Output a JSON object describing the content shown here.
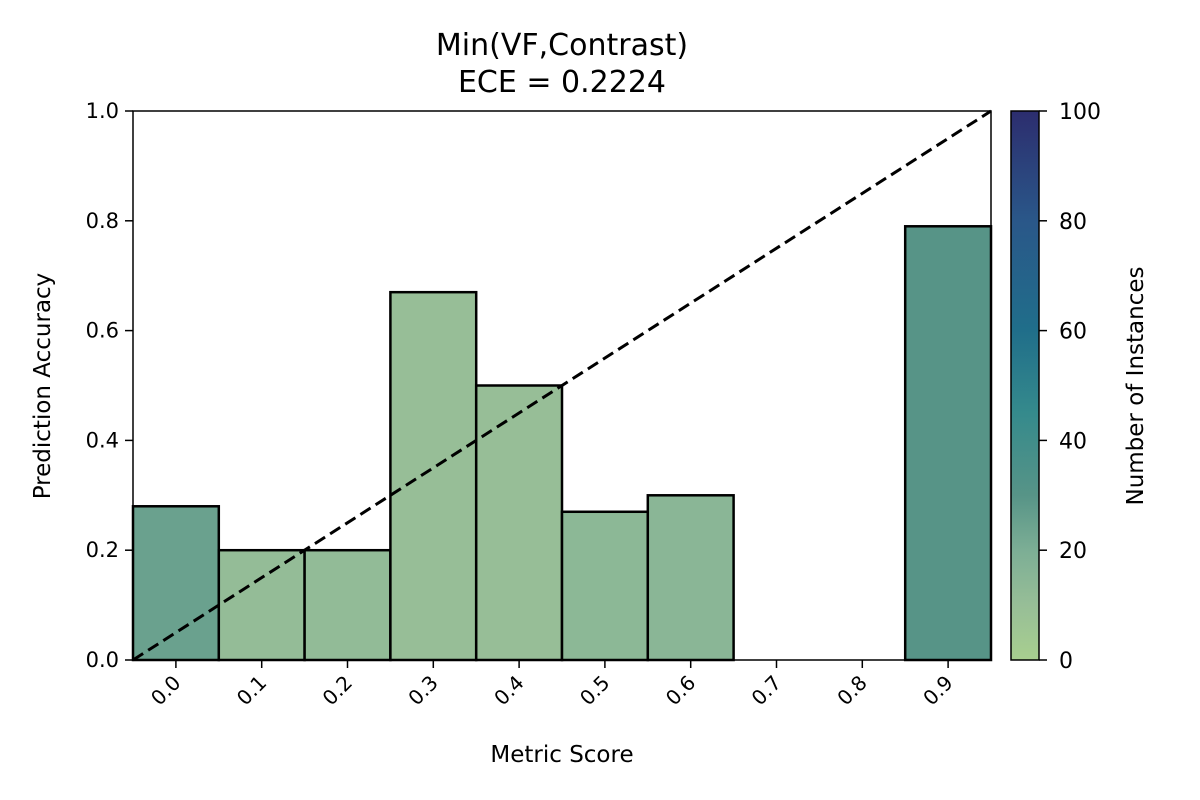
{
  "chart_data": {
    "type": "bar",
    "title": "Min(VF,Contrast)",
    "subtitle": "ECE = 0.2224",
    "xlabel": "Metric Score",
    "ylabel": "Prediction Accuracy",
    "categories": [
      "0.0",
      "0.1",
      "0.2",
      "0.3",
      "0.4",
      "0.5",
      "0.6",
      "0.7",
      "0.8",
      "0.9"
    ],
    "x_centers": [
      0.0,
      0.1,
      0.2,
      0.3,
      0.4,
      0.5,
      0.6,
      0.7,
      0.8,
      0.9
    ],
    "bin_width": 0.1,
    "values": [
      0.28,
      0.2,
      0.2,
      0.67,
      0.5,
      0.27,
      0.3,
      0,
      0,
      0.79
    ],
    "counts": [
      25,
      11,
      12,
      10,
      10,
      14,
      15,
      0,
      0,
      30
    ],
    "xlim": [
      -0.05,
      0.95
    ],
    "ylim": [
      0,
      1.0
    ],
    "yticks": [
      "0.0",
      "0.2",
      "0.4",
      "0.6",
      "0.8",
      "1.0"
    ],
    "ytick_values": [
      0,
      0.2,
      0.4,
      0.6,
      0.8,
      1.0
    ],
    "reference_line": "y = x (dashed)",
    "grid": false,
    "colorbar": {
      "label": "Number of Instances",
      "range": [
        0,
        100
      ],
      "ticks": [
        "0",
        "20",
        "40",
        "60",
        "80",
        "100"
      ],
      "tick_values": [
        0,
        20,
        40,
        60,
        80,
        100
      ],
      "stops": [
        {
          "v": 0,
          "color": "#a8cf8f"
        },
        {
          "v": 10,
          "color": "#97be97"
        },
        {
          "v": 20,
          "color": "#7cae95"
        },
        {
          "v": 30,
          "color": "#579487"
        },
        {
          "v": 45,
          "color": "#358a8c"
        },
        {
          "v": 60,
          "color": "#206e8a"
        },
        {
          "v": 80,
          "color": "#2a5789"
        },
        {
          "v": 100,
          "color": "#2c2d6e"
        }
      ]
    }
  }
}
